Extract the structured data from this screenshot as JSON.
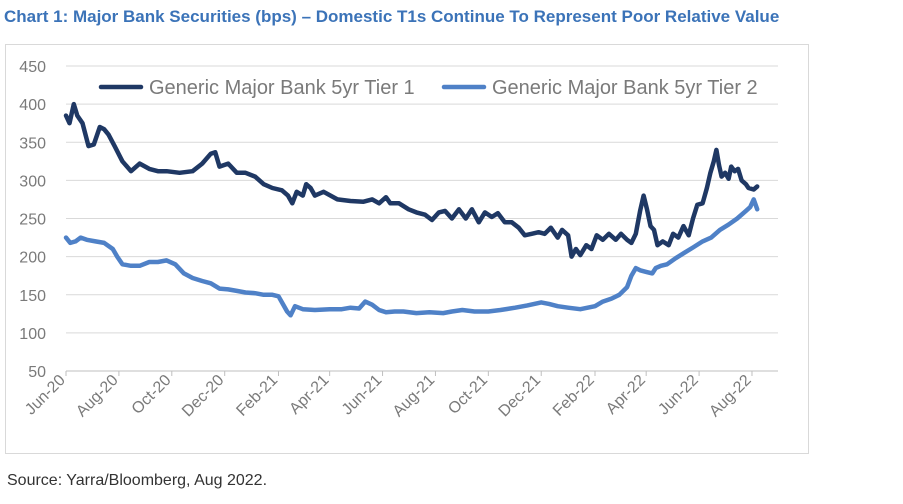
{
  "title": "Chart 1: Major Bank Securities (bps) – Domestic T1s Continue To Represent Poor Relative Value",
  "source": "Source: Yarra/Bloomberg, Aug 2022.",
  "chart_data": {
    "type": "line",
    "title": "Chart 1: Major Bank Securities (bps) – Domestic T1s Continue To Represent Poor Relative Value",
    "xlabel": "",
    "ylabel": "",
    "ylim": [
      50,
      450
    ],
    "yticks": [
      50,
      100,
      150,
      200,
      250,
      300,
      350,
      400,
      450
    ],
    "xlim": [
      "2020-06-01",
      "2022-08-31"
    ],
    "xtick_labels": [
      {
        "date": "2020-06-01",
        "label": "Jun-20"
      },
      {
        "date": "2020-08-01",
        "label": "Aug-20"
      },
      {
        "date": "2020-10-01",
        "label": "Oct-20"
      },
      {
        "date": "2020-12-01",
        "label": "Dec-20"
      },
      {
        "date": "2021-02-01",
        "label": "Feb-21"
      },
      {
        "date": "2021-04-01",
        "label": "Apr-21"
      },
      {
        "date": "2021-06-01",
        "label": "Jun-21"
      },
      {
        "date": "2021-08-01",
        "label": "Aug-21"
      },
      {
        "date": "2021-10-01",
        "label": "Oct-21"
      },
      {
        "date": "2021-12-01",
        "label": "Dec-21"
      },
      {
        "date": "2022-02-01",
        "label": "Feb-22"
      },
      {
        "date": "2022-04-01",
        "label": "Apr-22"
      },
      {
        "date": "2022-06-01",
        "label": "Jun-22"
      },
      {
        "date": "2022-08-01",
        "label": "Aug-22"
      }
    ],
    "grid": "horizontal",
    "legend_position": "top",
    "series": [
      {
        "name": "Generic Major Bank 5yr Tier 1",
        "color": "#1f3864",
        "points": [
          [
            "2020-06-01",
            385
          ],
          [
            "2020-06-05",
            375
          ],
          [
            "2020-06-10",
            400
          ],
          [
            "2020-06-14",
            385
          ],
          [
            "2020-06-20",
            375
          ],
          [
            "2020-06-27",
            345
          ],
          [
            "2020-07-03",
            347
          ],
          [
            "2020-07-10",
            370
          ],
          [
            "2020-07-15",
            367
          ],
          [
            "2020-07-20",
            360
          ],
          [
            "2020-07-27",
            345
          ],
          [
            "2020-08-05",
            325
          ],
          [
            "2020-08-15",
            312
          ],
          [
            "2020-08-25",
            322
          ],
          [
            "2020-09-05",
            315
          ],
          [
            "2020-09-15",
            312
          ],
          [
            "2020-09-25",
            312
          ],
          [
            "2020-10-10",
            310
          ],
          [
            "2020-10-25",
            312
          ],
          [
            "2020-11-05",
            322
          ],
          [
            "2020-11-15",
            335
          ],
          [
            "2020-11-20",
            337
          ],
          [
            "2020-11-25",
            318
          ],
          [
            "2020-12-05",
            322
          ],
          [
            "2020-12-15",
            310
          ],
          [
            "2020-12-25",
            310
          ],
          [
            "2021-01-05",
            305
          ],
          [
            "2021-01-15",
            295
          ],
          [
            "2021-01-25",
            290
          ],
          [
            "2021-02-05",
            287
          ],
          [
            "2021-02-12",
            280
          ],
          [
            "2021-02-17",
            270
          ],
          [
            "2021-02-22",
            285
          ],
          [
            "2021-03-01",
            280
          ],
          [
            "2021-03-05",
            295
          ],
          [
            "2021-03-10",
            290
          ],
          [
            "2021-03-15",
            280
          ],
          [
            "2021-03-25",
            285
          ],
          [
            "2021-04-10",
            275
          ],
          [
            "2021-04-25",
            273
          ],
          [
            "2021-05-10",
            272
          ],
          [
            "2021-05-20",
            275
          ],
          [
            "2021-05-28",
            270
          ],
          [
            "2021-06-05",
            278
          ],
          [
            "2021-06-10",
            270
          ],
          [
            "2021-06-20",
            270
          ],
          [
            "2021-07-01",
            262
          ],
          [
            "2021-07-10",
            258
          ],
          [
            "2021-07-20",
            255
          ],
          [
            "2021-07-28",
            248
          ],
          [
            "2021-08-05",
            258
          ],
          [
            "2021-08-12",
            260
          ],
          [
            "2021-08-20",
            250
          ],
          [
            "2021-08-28",
            262
          ],
          [
            "2021-09-05",
            250
          ],
          [
            "2021-09-12",
            262
          ],
          [
            "2021-09-20",
            245
          ],
          [
            "2021-09-27",
            258
          ],
          [
            "2021-10-05",
            252
          ],
          [
            "2021-10-12",
            257
          ],
          [
            "2021-10-20",
            245
          ],
          [
            "2021-10-28",
            245
          ],
          [
            "2021-11-05",
            238
          ],
          [
            "2021-11-12",
            228
          ],
          [
            "2021-11-20",
            230
          ],
          [
            "2021-11-28",
            232
          ],
          [
            "2021-12-05",
            230
          ],
          [
            "2021-12-12",
            238
          ],
          [
            "2021-12-20",
            225
          ],
          [
            "2021-12-25",
            235
          ],
          [
            "2022-01-01",
            228
          ],
          [
            "2022-01-05",
            200
          ],
          [
            "2022-01-10",
            210
          ],
          [
            "2022-01-15",
            202
          ],
          [
            "2022-01-22",
            215
          ],
          [
            "2022-01-28",
            210
          ],
          [
            "2022-02-03",
            228
          ],
          [
            "2022-02-10",
            222
          ],
          [
            "2022-02-17",
            230
          ],
          [
            "2022-02-25",
            222
          ],
          [
            "2022-03-03",
            230
          ],
          [
            "2022-03-10",
            222
          ],
          [
            "2022-03-15",
            218
          ],
          [
            "2022-03-20",
            230
          ],
          [
            "2022-03-25",
            260
          ],
          [
            "2022-03-29",
            280
          ],
          [
            "2022-04-02",
            262
          ],
          [
            "2022-04-06",
            240
          ],
          [
            "2022-04-10",
            235
          ],
          [
            "2022-04-14",
            215
          ],
          [
            "2022-04-20",
            220
          ],
          [
            "2022-04-27",
            215
          ],
          [
            "2022-05-02",
            230
          ],
          [
            "2022-05-08",
            225
          ],
          [
            "2022-05-14",
            240
          ],
          [
            "2022-05-20",
            228
          ],
          [
            "2022-05-25",
            250
          ],
          [
            "2022-05-30",
            268
          ],
          [
            "2022-06-05",
            270
          ],
          [
            "2022-06-10",
            290
          ],
          [
            "2022-06-14",
            310
          ],
          [
            "2022-06-18",
            325
          ],
          [
            "2022-06-21",
            340
          ],
          [
            "2022-06-24",
            320
          ],
          [
            "2022-06-27",
            305
          ],
          [
            "2022-07-01",
            310
          ],
          [
            "2022-07-05",
            302
          ],
          [
            "2022-07-08",
            318
          ],
          [
            "2022-07-12",
            312
          ],
          [
            "2022-07-16",
            315
          ],
          [
            "2022-07-20",
            300
          ],
          [
            "2022-07-25",
            295
          ],
          [
            "2022-07-28",
            290
          ],
          [
            "2022-08-03",
            288
          ],
          [
            "2022-08-07",
            292
          ]
        ]
      },
      {
        "name": "Generic Major Bank 5yr Tier 2",
        "color": "#4f81c7",
        "points": [
          [
            "2020-06-01",
            225
          ],
          [
            "2020-06-06",
            218
          ],
          [
            "2020-06-12",
            220
          ],
          [
            "2020-06-18",
            225
          ],
          [
            "2020-06-25",
            222
          ],
          [
            "2020-07-05",
            220
          ],
          [
            "2020-07-15",
            218
          ],
          [
            "2020-07-25",
            210
          ],
          [
            "2020-07-30",
            200
          ],
          [
            "2020-08-05",
            190
          ],
          [
            "2020-08-15",
            188
          ],
          [
            "2020-08-25",
            188
          ],
          [
            "2020-09-05",
            193
          ],
          [
            "2020-09-15",
            193
          ],
          [
            "2020-09-25",
            195
          ],
          [
            "2020-10-05",
            190
          ],
          [
            "2020-10-15",
            178
          ],
          [
            "2020-10-25",
            172
          ],
          [
            "2020-11-05",
            168
          ],
          [
            "2020-11-15",
            165
          ],
          [
            "2020-11-25",
            158
          ],
          [
            "2020-12-05",
            157
          ],
          [
            "2020-12-15",
            155
          ],
          [
            "2020-12-25",
            153
          ],
          [
            "2021-01-05",
            152
          ],
          [
            "2021-01-15",
            150
          ],
          [
            "2021-01-25",
            150
          ],
          [
            "2021-02-01",
            148
          ],
          [
            "2021-02-06",
            138
          ],
          [
            "2021-02-11",
            128
          ],
          [
            "2021-02-15",
            123
          ],
          [
            "2021-02-20",
            135
          ],
          [
            "2021-03-01",
            131
          ],
          [
            "2021-03-15",
            130
          ],
          [
            "2021-04-01",
            131
          ],
          [
            "2021-04-15",
            131
          ],
          [
            "2021-04-25",
            133
          ],
          [
            "2021-05-05",
            132
          ],
          [
            "2021-05-12",
            141
          ],
          [
            "2021-05-20",
            137
          ],
          [
            "2021-05-28",
            130
          ],
          [
            "2021-06-05",
            127
          ],
          [
            "2021-06-15",
            128
          ],
          [
            "2021-06-25",
            128
          ],
          [
            "2021-07-10",
            126
          ],
          [
            "2021-07-25",
            127
          ],
          [
            "2021-08-10",
            126
          ],
          [
            "2021-08-20",
            128
          ],
          [
            "2021-09-01",
            130
          ],
          [
            "2021-09-15",
            128
          ],
          [
            "2021-10-01",
            128
          ],
          [
            "2021-10-15",
            130
          ],
          [
            "2021-11-01",
            133
          ],
          [
            "2021-11-15",
            136
          ],
          [
            "2021-12-01",
            140
          ],
          [
            "2021-12-10",
            138
          ],
          [
            "2021-12-20",
            135
          ],
          [
            "2022-01-01",
            133
          ],
          [
            "2022-01-15",
            131
          ],
          [
            "2022-02-01",
            135
          ],
          [
            "2022-02-10",
            141
          ],
          [
            "2022-02-20",
            145
          ],
          [
            "2022-03-01",
            150
          ],
          [
            "2022-03-10",
            160
          ],
          [
            "2022-03-15",
            175
          ],
          [
            "2022-03-20",
            185
          ],
          [
            "2022-03-25",
            182
          ],
          [
            "2022-04-01",
            180
          ],
          [
            "2022-04-08",
            178
          ],
          [
            "2022-04-12",
            185
          ],
          [
            "2022-04-18",
            188
          ],
          [
            "2022-04-25",
            190
          ],
          [
            "2022-05-05",
            198
          ],
          [
            "2022-05-15",
            205
          ],
          [
            "2022-05-25",
            212
          ],
          [
            "2022-06-05",
            220
          ],
          [
            "2022-06-15",
            225
          ],
          [
            "2022-06-25",
            235
          ],
          [
            "2022-07-05",
            242
          ],
          [
            "2022-07-15",
            250
          ],
          [
            "2022-07-25",
            260
          ],
          [
            "2022-07-30",
            265
          ],
          [
            "2022-08-03",
            275
          ],
          [
            "2022-08-07",
            262
          ]
        ]
      }
    ]
  }
}
